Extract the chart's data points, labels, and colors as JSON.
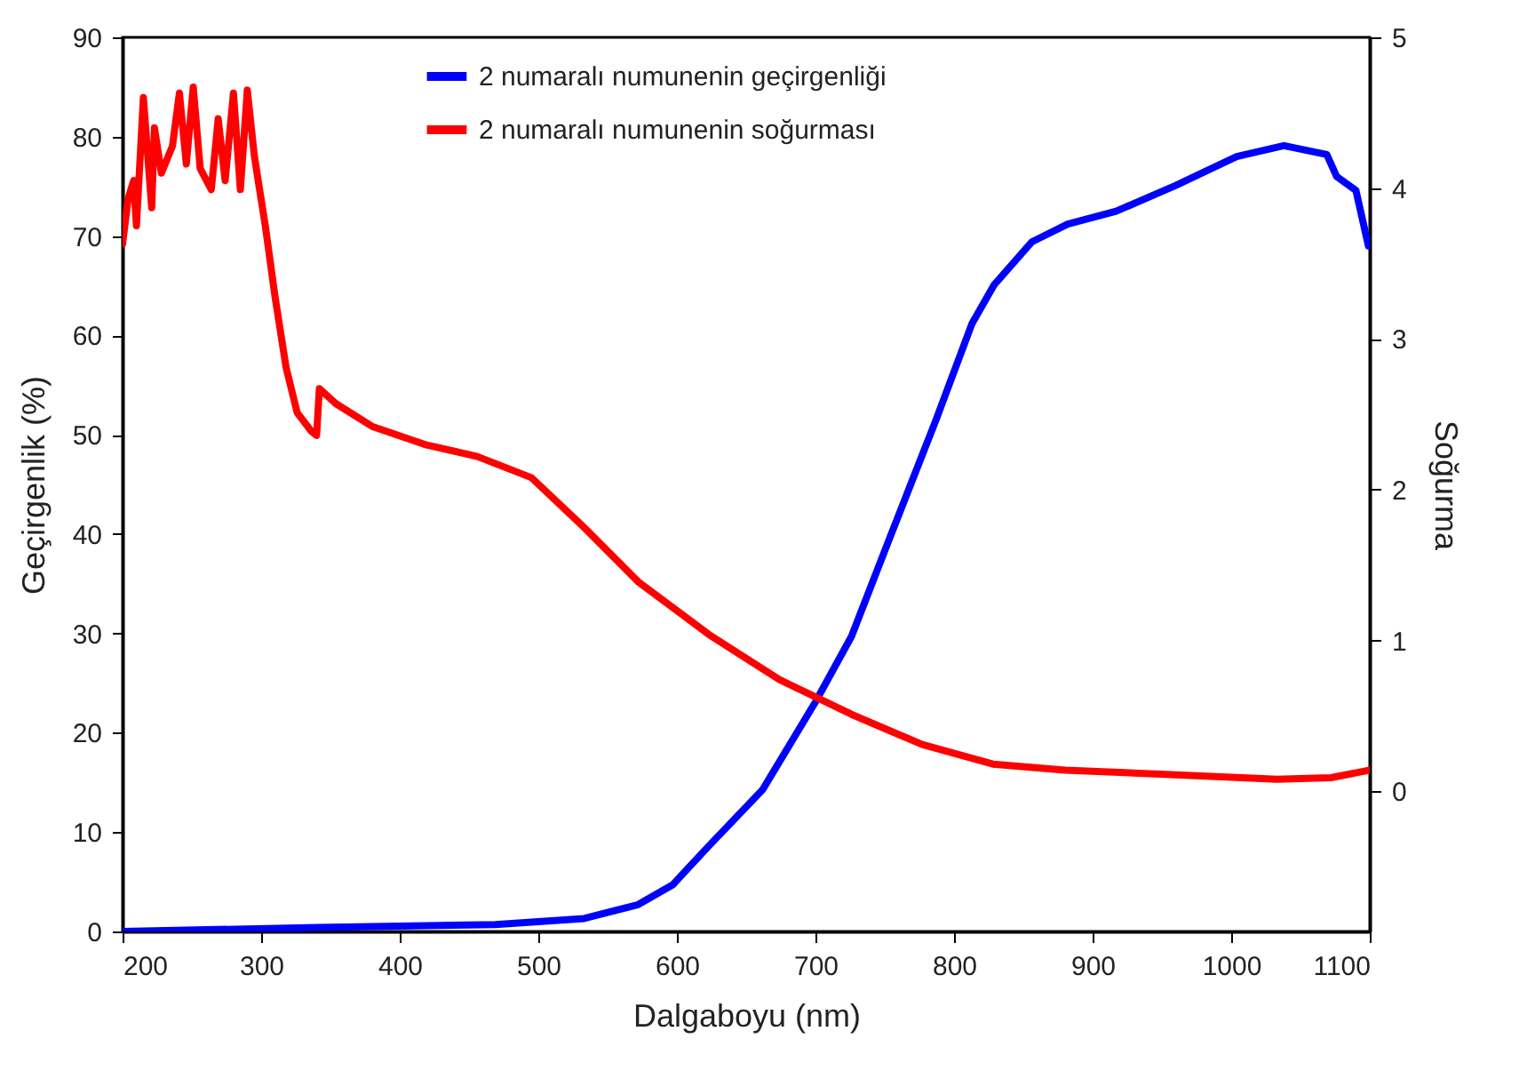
{
  "chart_data": {
    "type": "line",
    "xlabel": "Dalgaboyu (nm)",
    "ylabel": "Geçirgenlik (%)",
    "y2label": "Soğurma",
    "xlim": [
      200,
      1100
    ],
    "xticks": [
      200,
      300,
      400,
      500,
      600,
      700,
      800,
      900,
      1000,
      1100
    ],
    "ylim": [
      0,
      90
    ],
    "yticks": [
      0,
      10,
      20,
      30,
      40,
      50,
      60,
      70,
      80,
      90
    ],
    "y2lim": [
      -0.93,
      5
    ],
    "y2ticks": [
      0,
      1,
      2,
      3,
      4,
      5
    ],
    "grid": false,
    "legend": "top",
    "marker": "none",
    "line_style": "solid",
    "series": [
      {
        "name": "2 numaralı numunenin geçirgenliği",
        "color": "#0000ff",
        "x": [
          200,
          341,
          469,
          533,
          572,
          597,
          623,
          662,
          700,
          726,
          753,
          787,
          813,
          829,
          856,
          882,
          917,
          960,
          1004,
          1038,
          1069,
          1076,
          1090,
          1099
        ],
        "values": [
          0,
          0.4,
          0.7,
          1.3,
          2.7,
          4.7,
          8.6,
          14.3,
          23.1,
          29.7,
          39.4,
          51.5,
          61.2,
          65.1,
          69.4,
          71.2,
          72.5,
          75.1,
          78,
          79.1,
          78.2,
          76,
          74.6,
          69
        ]
      },
      {
        "name": "2 numaralı numunenin soğurması",
        "color": "#ff0000",
        "axis": "y2",
        "x": [
          200,
          204,
          208,
          210,
          215,
          221,
          223,
          228,
          236,
          241,
          246,
          251,
          256,
          264,
          269,
          274,
          280,
          285,
          290,
          295,
          297,
          303,
          310,
          318,
          326,
          336,
          340,
          342,
          354,
          380,
          418,
          456,
          495,
          533,
          572,
          623,
          674,
          726,
          777,
          828,
          880,
          956,
          1033,
          1072,
          1100
        ],
        "values": [
          3.63,
          3.93,
          4.05,
          3.75,
          4.6,
          3.87,
          4.4,
          4.1,
          4.28,
          4.63,
          4.16,
          4.67,
          4.13,
          3.99,
          4.46,
          4.05,
          4.63,
          3.99,
          4.65,
          4.22,
          4.1,
          3.75,
          3.28,
          2.81,
          2.51,
          2.39,
          2.36,
          2.67,
          2.57,
          2.42,
          2.3,
          2.22,
          2.08,
          1.75,
          1.39,
          1.04,
          0.74,
          0.51,
          0.31,
          0.18,
          0.14,
          0.11,
          0.08,
          0.09,
          0.14
        ]
      }
    ]
  }
}
